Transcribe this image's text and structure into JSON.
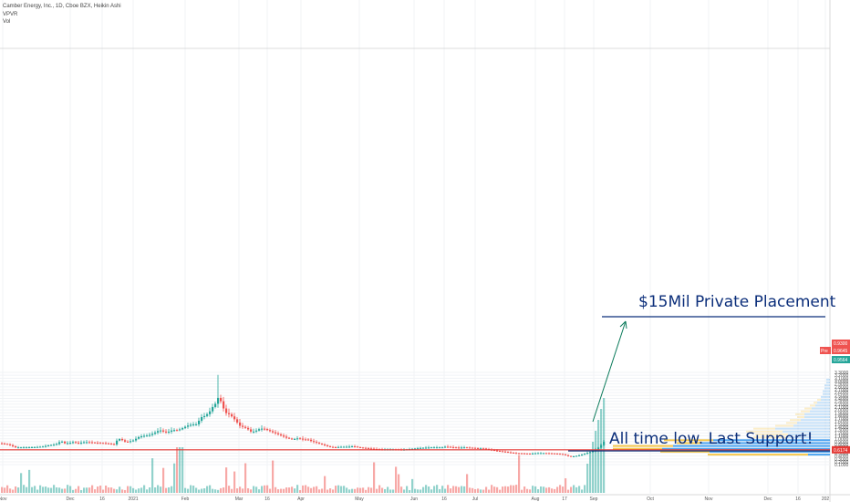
{
  "header": {
    "symbol_line": "Camber Energy, Inc., 1D, Cboe BZX, Heikin Ashi",
    "indicator_1": "VPVR",
    "indicator_2": "Vol"
  },
  "annotations": {
    "placement_text": "$15Mil Private Placement",
    "support_text": "All time low. Last Support!"
  },
  "chart_data": {
    "type": "candlestick",
    "style": "Heikin Ashi",
    "interval": "1D",
    "exchange": "Cboe BZX",
    "ylim": [
      0.2,
      3.3
    ],
    "y_ticks": [
      "0.1000",
      "0.2000",
      "0.3000",
      "0.4000",
      "0.5000",
      "0.6000",
      "0.7000",
      "0.8000",
      "0.9000",
      "1.0000",
      "1.1000",
      "1.2000",
      "1.3000",
      "1.4000",
      "1.5000",
      "1.6000",
      "1.7000",
      "1.8000",
      "1.9000",
      "2.0000",
      "2.1000",
      "2.2000",
      "2.3000",
      "2.4000",
      "2.5000",
      "2.6000",
      "2.7000",
      "2.8000",
      "2.9000",
      "3.0000",
      "3.1000",
      "3.2000",
      "3.3000"
    ],
    "x_ticks": [
      "Nov",
      "Dec",
      "16",
      "2021",
      "Feb",
      "Mar",
      "16",
      "Apr",
      "May",
      "Jun",
      "16",
      "Jul",
      "Aug",
      "17",
      "Sep",
      "Oct",
      "Nov",
      "Dec",
      "16",
      "202"
    ],
    "price_labels": {
      "high_label": "0.9300",
      "current_label": "0.9645",
      "current_tag": "Pre",
      "secondary_label": "0.9564",
      "support_label": "0.6174"
    },
    "support_line": 0.6174,
    "colors": {
      "up": "#26a69a",
      "down": "#ef5350",
      "support": "#e53935",
      "annotation": "#0b2e7a",
      "vp_up": "#4aa3f0",
      "vp_down": "#f6c84c"
    },
    "price_path": [
      [
        0,
        0.84
      ],
      [
        8,
        0.8
      ],
      [
        16,
        0.7
      ],
      [
        28,
        0.7
      ],
      [
        38,
        0.71
      ],
      [
        46,
        0.73
      ],
      [
        54,
        0.78
      ],
      [
        60,
        0.8
      ],
      [
        66,
        0.92
      ],
      [
        70,
        0.84
      ],
      [
        76,
        0.86
      ],
      [
        80,
        0.89
      ],
      [
        84,
        0.84
      ],
      [
        90,
        0.88
      ],
      [
        96,
        0.88
      ],
      [
        104,
        0.86
      ],
      [
        112,
        0.85
      ],
      [
        118,
        0.83
      ],
      [
        124,
        0.8
      ],
      [
        128,
        0.98
      ],
      [
        132,
        1.0
      ],
      [
        134,
        0.9
      ],
      [
        140,
        0.9
      ],
      [
        146,
        0.95
      ],
      [
        150,
        1.05
      ],
      [
        156,
        1.1
      ],
      [
        162,
        1.12
      ],
      [
        168,
        1.2
      ],
      [
        174,
        1.3
      ],
      [
        178,
        1.25
      ],
      [
        182,
        1.22
      ],
      [
        188,
        1.3
      ],
      [
        194,
        1.3
      ],
      [
        198,
        1.35
      ],
      [
        204,
        1.45
      ],
      [
        210,
        1.5
      ],
      [
        214,
        1.5
      ],
      [
        220,
        1.75
      ],
      [
        224,
        1.8
      ],
      [
        228,
        1.9
      ],
      [
        232,
        2.1
      ],
      [
        236,
        2.25
      ],
      [
        239,
        2.5
      ],
      [
        242,
        2.2
      ],
      [
        246,
        1.9
      ],
      [
        250,
        1.85
      ],
      [
        254,
        1.75
      ],
      [
        258,
        1.6
      ],
      [
        262,
        1.45
      ],
      [
        266,
        1.4
      ],
      [
        270,
        1.35
      ],
      [
        274,
        1.25
      ],
      [
        278,
        1.25
      ],
      [
        284,
        1.35
      ],
      [
        288,
        1.35
      ],
      [
        292,
        1.3
      ],
      [
        296,
        1.25
      ],
      [
        300,
        1.2
      ],
      [
        304,
        1.15
      ],
      [
        308,
        1.1
      ],
      [
        314,
        1.02
      ],
      [
        320,
        0.98
      ],
      [
        326,
        1.02
      ],
      [
        332,
        0.97
      ],
      [
        336,
        0.98
      ],
      [
        340,
        0.92
      ],
      [
        344,
        0.88
      ],
      [
        348,
        0.84
      ],
      [
        352,
        0.8
      ],
      [
        356,
        0.76
      ],
      [
        360,
        0.72
      ],
      [
        366,
        0.7
      ],
      [
        372,
        0.72
      ],
      [
        380,
        0.72
      ],
      [
        386,
        0.74
      ],
      [
        392,
        0.7
      ],
      [
        398,
        0.68
      ],
      [
        404,
        0.66
      ],
      [
        410,
        0.64
      ],
      [
        416,
        0.63
      ],
      [
        424,
        0.63
      ],
      [
        432,
        0.63
      ],
      [
        440,
        0.62
      ],
      [
        448,
        0.64
      ],
      [
        454,
        0.66
      ],
      [
        460,
        0.68
      ],
      [
        466,
        0.69
      ],
      [
        472,
        0.7
      ],
      [
        478,
        0.7
      ],
      [
        484,
        0.7
      ],
      [
        488,
        0.73
      ],
      [
        492,
        0.71
      ],
      [
        496,
        0.7
      ],
      [
        502,
        0.69
      ],
      [
        508,
        0.7
      ],
      [
        512,
        0.69
      ],
      [
        518,
        0.68
      ],
      [
        524,
        0.66
      ],
      [
        528,
        0.67
      ],
      [
        534,
        0.63
      ],
      [
        540,
        0.6
      ],
      [
        546,
        0.57
      ],
      [
        552,
        0.55
      ],
      [
        558,
        0.52
      ],
      [
        564,
        0.5
      ],
      [
        572,
        0.49
      ],
      [
        580,
        0.48
      ],
      [
        588,
        0.5
      ],
      [
        596,
        0.5
      ],
      [
        604,
        0.49
      ],
      [
        610,
        0.48
      ],
      [
        616,
        0.46
      ],
      [
        622,
        0.4
      ],
      [
        626,
        0.38
      ],
      [
        630,
        0.4
      ],
      [
        636,
        0.44
      ],
      [
        640,
        0.48
      ],
      [
        644,
        0.52
      ],
      [
        650,
        0.58
      ],
      [
        654,
        0.66
      ],
      [
        658,
        0.78
      ],
      [
        662,
        0.93
      ]
    ],
    "volume_profile": [
      {
        "price": 0.45,
        "up": 0.12,
        "down": 0.55
      },
      {
        "price": 0.55,
        "up": 0.66,
        "down": 0.27
      },
      {
        "price": 0.65,
        "up": 0.92,
        "down": 0.27
      },
      {
        "price": 0.75,
        "up": 0.86,
        "down": 0.33
      },
      {
        "price": 0.85,
        "up": 0.71,
        "down": 0.13
      },
      {
        "price": 0.95,
        "up": 0.64,
        "down": 0.27
      },
      {
        "price": 1.05,
        "up": 0.24,
        "down": 0.18
      },
      {
        "price": 1.15,
        "up": 0.23,
        "down": 0.18
      },
      {
        "price": 1.25,
        "up": 0.26,
        "down": 0.2
      },
      {
        "price": 1.35,
        "up": 0.3,
        "down": 0.12
      },
      {
        "price": 1.45,
        "up": 0.2,
        "down": 0.1
      },
      {
        "price": 1.55,
        "up": 0.18,
        "down": 0.06
      },
      {
        "price": 1.65,
        "up": 0.16,
        "down": 0.06
      },
      {
        "price": 1.75,
        "up": 0.14,
        "down": 0.04
      },
      {
        "price": 1.85,
        "up": 0.14,
        "down": 0.05
      },
      {
        "price": 1.95,
        "up": 0.11,
        "down": 0.05
      },
      {
        "price": 2.05,
        "up": 0.1,
        "down": 0.04
      },
      {
        "price": 2.15,
        "up": 0.08,
        "down": 0.03
      },
      {
        "price": 2.25,
        "up": 0.07,
        "down": 0.02
      },
      {
        "price": 2.35,
        "up": 0.05,
        "down": 0.02
      },
      {
        "price": 2.45,
        "up": 0.05,
        "down": 0.0
      },
      {
        "price": 2.55,
        "up": 0.04,
        "down": 0.0
      },
      {
        "price": 2.65,
        "up": 0.04,
        "down": 0.0
      },
      {
        "price": 2.75,
        "up": 0.03,
        "down": 0.0
      },
      {
        "price": 2.85,
        "up": 0.03,
        "down": 0.0
      },
      {
        "price": 2.95,
        "up": 0.02,
        "down": 0.0
      },
      {
        "price": 3.05,
        "up": 0.02,
        "down": 0.0
      }
    ]
  }
}
